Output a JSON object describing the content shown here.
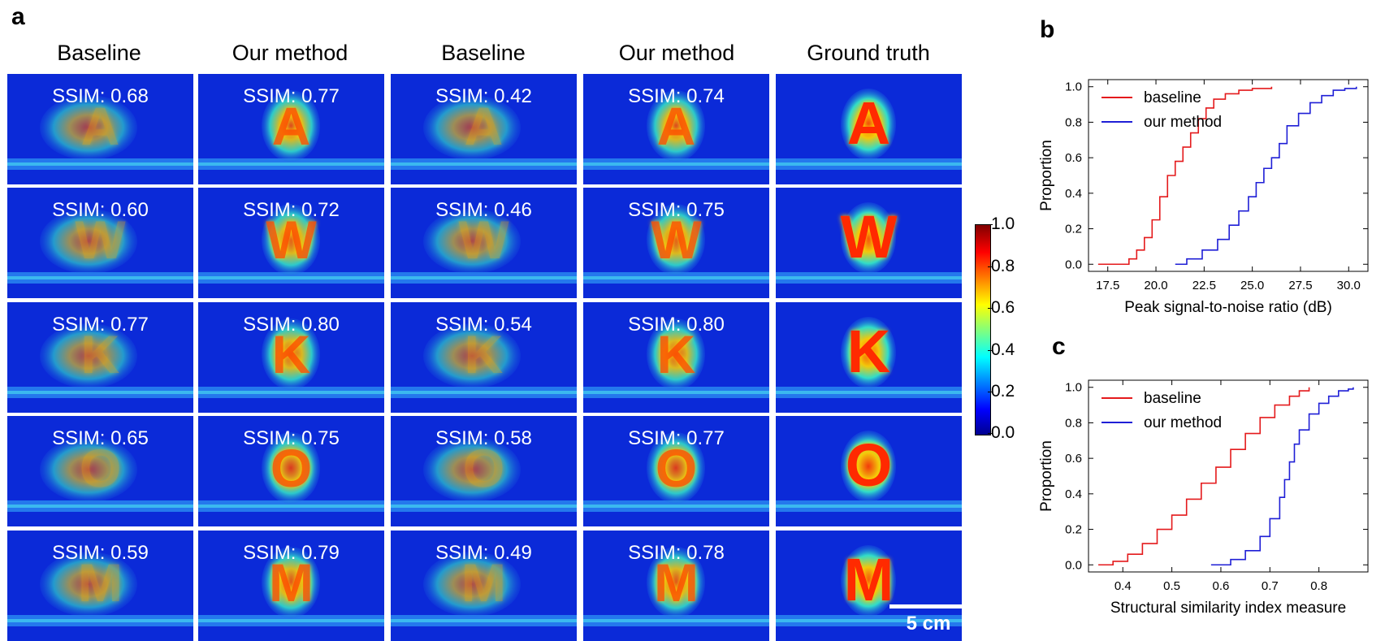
{
  "panel_labels": {
    "a": "a",
    "b": "b",
    "c": "c"
  },
  "column_headers": [
    "Baseline",
    "Our method",
    "Baseline",
    "Our method",
    "Ground truth"
  ],
  "grid": {
    "rows": [
      {
        "letter": "A",
        "ssim": [
          "SSIM: 0.68",
          "SSIM: 0.77",
          "SSIM: 0.42",
          "SSIM: 0.74"
        ]
      },
      {
        "letter": "W",
        "ssim": [
          "SSIM: 0.60",
          "SSIM: 0.72",
          "SSIM: 0.46",
          "SSIM: 0.75"
        ]
      },
      {
        "letter": "K",
        "ssim": [
          "SSIM: 0.77",
          "SSIM: 0.80",
          "SSIM: 0.54",
          "SSIM: 0.80"
        ]
      },
      {
        "letter": "O",
        "ssim": [
          "SSIM: 0.65",
          "SSIM: 0.75",
          "SSIM: 0.58",
          "SSIM: 0.77"
        ]
      },
      {
        "letter": "M",
        "ssim": [
          "SSIM: 0.59",
          "SSIM: 0.79",
          "SSIM: 0.49",
          "SSIM: 0.78"
        ]
      }
    ]
  },
  "scale_bar": "5 cm",
  "colorbar": {
    "ticks": [
      "1.0",
      "0.8",
      "0.6",
      "0.4",
      "0.2",
      "0.0"
    ],
    "colormap": "jet"
  },
  "colors": {
    "baseline": "#e41a1c",
    "ours": "#1f1fd6",
    "background": "#0b2ad8"
  },
  "chart_data": [
    {
      "type": "line",
      "panel": "b",
      "xlabel": "Peak signal-to-noise ratio (dB)",
      "ylabel": "Proportion",
      "xlim": [
        16.5,
        31
      ],
      "ylim": [
        -0.04,
        1.04
      ],
      "xticks": [
        17.5,
        20.0,
        22.5,
        25.0,
        27.5,
        30.0
      ],
      "xtick_labels": [
        "17.5",
        "20.0",
        "22.5",
        "25.0",
        "27.5",
        "30.0"
      ],
      "yticks": [
        0.0,
        0.2,
        0.4,
        0.6,
        0.8,
        1.0
      ],
      "ytick_labels": [
        "0.0",
        "0.2",
        "0.4",
        "0.6",
        "0.8",
        "1.0"
      ],
      "legend": "top-left",
      "series": [
        {
          "name": "baseline",
          "color": "#e41a1c",
          "x": [
            17.0,
            18.0,
            18.6,
            19.0,
            19.4,
            19.8,
            20.2,
            20.6,
            21.0,
            21.4,
            21.8,
            22.2,
            22.6,
            23.0,
            23.6,
            24.3,
            25.0,
            26.0
          ],
          "y": [
            0.0,
            0.0,
            0.03,
            0.08,
            0.15,
            0.25,
            0.38,
            0.5,
            0.58,
            0.66,
            0.74,
            0.82,
            0.88,
            0.93,
            0.96,
            0.98,
            0.99,
            1.0
          ]
        },
        {
          "name": "our method",
          "color": "#1f1fd6",
          "x": [
            21.0,
            21.6,
            22.4,
            23.2,
            23.8,
            24.3,
            24.8,
            25.2,
            25.6,
            26.0,
            26.4,
            26.8,
            27.4,
            28.0,
            28.6,
            29.2,
            29.8,
            30.4
          ],
          "y": [
            0.0,
            0.03,
            0.08,
            0.14,
            0.22,
            0.3,
            0.38,
            0.46,
            0.54,
            0.6,
            0.68,
            0.78,
            0.85,
            0.91,
            0.95,
            0.98,
            0.99,
            1.0
          ]
        }
      ]
    },
    {
      "type": "line",
      "panel": "c",
      "xlabel": "Structural similarity index measure",
      "ylabel": "Proportion",
      "xlim": [
        0.33,
        0.9
      ],
      "ylim": [
        -0.04,
        1.04
      ],
      "xticks": [
        0.4,
        0.5,
        0.6,
        0.7,
        0.8
      ],
      "xtick_labels": [
        "0.4",
        "0.5",
        "0.6",
        "0.7",
        "0.8"
      ],
      "yticks": [
        0.0,
        0.2,
        0.4,
        0.6,
        0.8,
        1.0
      ],
      "ytick_labels": [
        "0.0",
        "0.2",
        "0.4",
        "0.6",
        "0.8",
        "1.0"
      ],
      "legend": "top-left",
      "series": [
        {
          "name": "baseline",
          "color": "#e41a1c",
          "x": [
            0.35,
            0.38,
            0.41,
            0.44,
            0.47,
            0.5,
            0.53,
            0.56,
            0.59,
            0.62,
            0.65,
            0.68,
            0.71,
            0.74,
            0.76,
            0.78
          ],
          "y": [
            0.0,
            0.02,
            0.06,
            0.12,
            0.2,
            0.28,
            0.37,
            0.46,
            0.55,
            0.65,
            0.74,
            0.83,
            0.9,
            0.95,
            0.98,
            1.0
          ]
        },
        {
          "name": "our method",
          "color": "#1f1fd6",
          "x": [
            0.58,
            0.62,
            0.65,
            0.68,
            0.7,
            0.72,
            0.73,
            0.74,
            0.75,
            0.76,
            0.78,
            0.8,
            0.82,
            0.84,
            0.86,
            0.87
          ],
          "y": [
            0.0,
            0.03,
            0.08,
            0.16,
            0.26,
            0.38,
            0.48,
            0.58,
            0.68,
            0.76,
            0.85,
            0.91,
            0.95,
            0.98,
            0.99,
            1.0
          ]
        }
      ]
    }
  ]
}
